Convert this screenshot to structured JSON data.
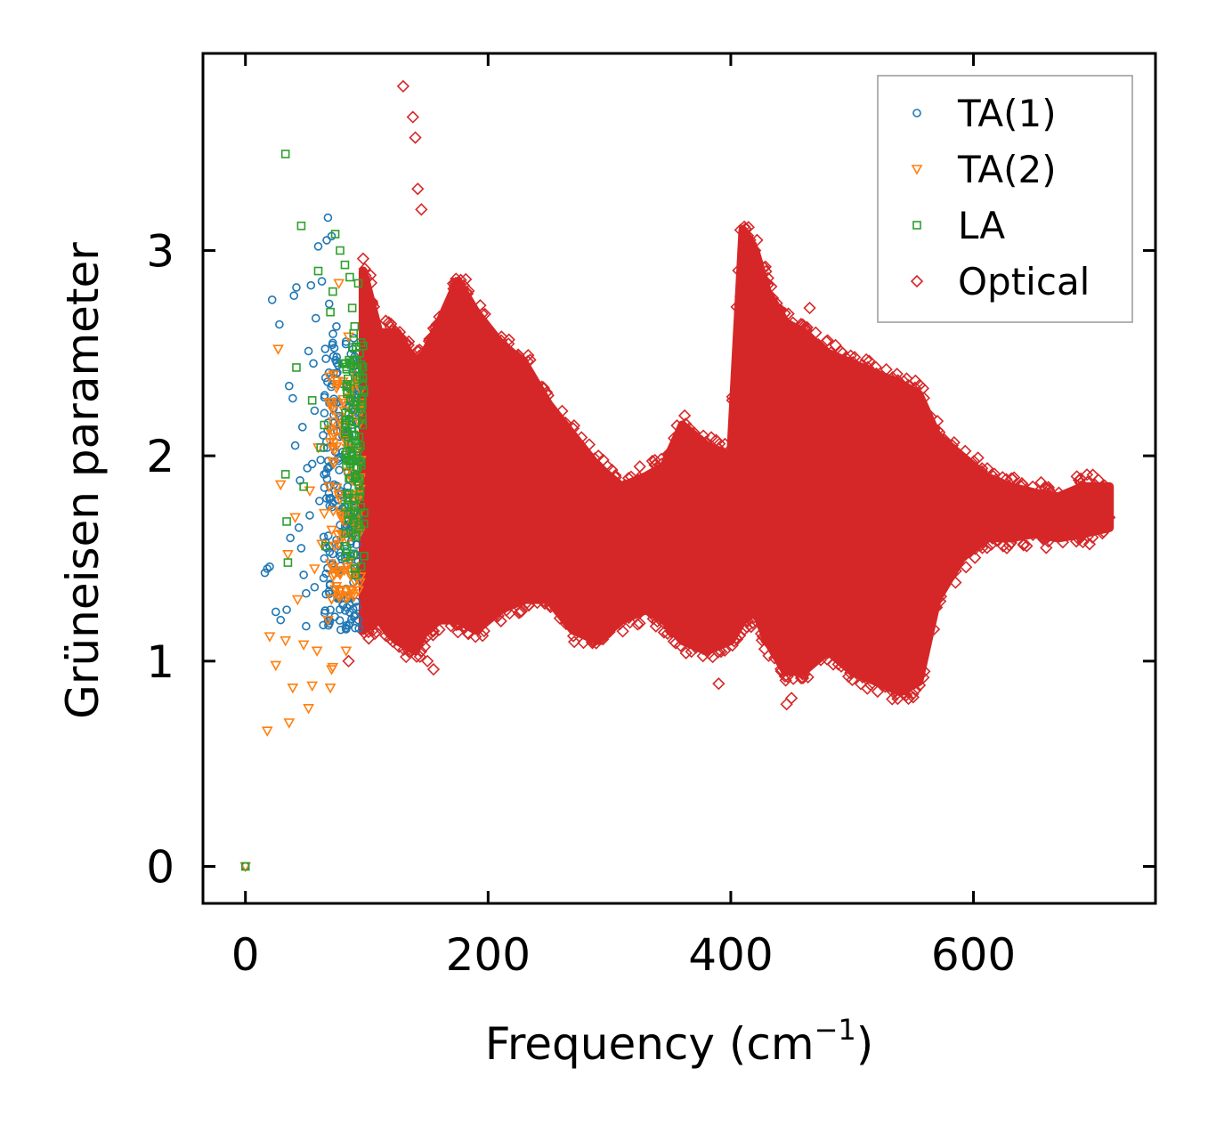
{
  "chart_data": {
    "type": "scatter",
    "title": "",
    "xlabel": "Frequency (cm",
    "xlabel_superscript": "−1",
    "xlabel_suffix": ")",
    "ylabel": "Grüneisen parameter",
    "xlim": [
      -35,
      750
    ],
    "ylim": [
      -0.18,
      3.96
    ],
    "xticks": [
      0,
      200,
      400,
      600
    ],
    "xtick_labels": [
      "0",
      "200",
      "400",
      "600"
    ],
    "yticks": [
      0,
      1,
      2,
      3
    ],
    "ytick_labels": [
      "0",
      "1",
      "2",
      "3"
    ],
    "grid": false,
    "legend_position": "top-right",
    "series": [
      {
        "name": "TA(1)",
        "marker": "circle",
        "color": "#1f77b4",
        "points": [
          [
            0,
            0
          ],
          [
            16,
            1.43
          ],
          [
            18,
            1.45
          ],
          [
            20,
            1.46
          ],
          [
            22,
            2.76
          ],
          [
            25,
            1.24
          ],
          [
            28,
            2.64
          ],
          [
            29,
            1.2
          ],
          [
            34,
            1.25
          ],
          [
            36,
            2.34
          ],
          [
            37,
            1.6
          ],
          [
            39,
            2.28
          ],
          [
            40,
            2.78
          ],
          [
            41,
            2.05
          ],
          [
            42,
            2.82
          ],
          [
            44,
            1.65
          ],
          [
            45,
            1.88
          ],
          [
            46,
            1.55
          ],
          [
            47,
            2.14
          ],
          [
            48,
            1.42
          ],
          [
            50,
            1.33
          ],
          [
            50,
            1.17
          ],
          [
            51,
            1.94
          ],
          [
            52,
            2.51
          ],
          [
            53,
            1.71
          ],
          [
            54,
            2.83
          ],
          [
            55,
            1.96
          ],
          [
            56,
            2.45
          ],
          [
            57,
            2.22
          ],
          [
            57,
            1.36
          ],
          [
            58,
            2.67
          ],
          [
            60,
            3.02
          ],
          [
            61,
            1.78
          ],
          [
            62,
            1.98
          ],
          [
            63,
            2.85
          ],
          [
            64,
            2.1
          ],
          [
            65,
            1.5
          ],
          [
            66,
            2.38
          ],
          [
            67,
            3.05
          ],
          [
            68,
            3.16
          ],
          [
            69,
            2.74
          ],
          [
            70,
            1.25
          ],
          [
            71,
            3.07
          ],
          [
            72,
            2.55
          ],
          [
            73,
            1.86
          ],
          [
            74,
            2.02
          ],
          [
            75,
            2.63
          ],
          [
            76,
            1.31
          ],
          [
            78,
            2.16
          ],
          [
            80,
            2.35
          ],
          [
            82,
            1.62
          ],
          [
            84,
            1.82
          ],
          [
            85,
            2.24
          ],
          [
            87,
            1.45
          ],
          [
            88,
            1.9
          ],
          [
            90,
            1.52
          ],
          [
            91,
            1.29
          ],
          [
            92,
            1.72
          ],
          [
            93,
            1.2
          ]
        ],
        "dense_band": {
          "x": [
            64,
            94
          ],
          "y": [
            1.15,
            2.6
          ],
          "density": 220
        }
      },
      {
        "name": "TA(2)",
        "marker": "triangle-down",
        "color": "#ff7f0e",
        "points": [
          [
            0,
            0
          ],
          [
            18,
            0.66
          ],
          [
            20,
            1.12
          ],
          [
            25,
            0.98
          ],
          [
            27,
            2.52
          ],
          [
            29,
            1.86
          ],
          [
            33,
            1.1
          ],
          [
            35,
            1.52
          ],
          [
            36,
            0.7
          ],
          [
            39,
            0.87
          ],
          [
            41,
            1.7
          ],
          [
            43,
            1.3
          ],
          [
            48,
            1.08
          ],
          [
            52,
            0.77
          ],
          [
            53,
            1.83
          ],
          [
            55,
            0.88
          ],
          [
            57,
            1.45
          ],
          [
            59,
            1.05
          ],
          [
            60,
            2.04
          ],
          [
            63,
            1.57
          ],
          [
            65,
            1.72
          ],
          [
            68,
            1.2
          ],
          [
            70,
            0.87
          ],
          [
            71,
            0.96
          ],
          [
            72,
            0.97
          ],
          [
            74,
            1.35
          ],
          [
            75,
            2.33
          ],
          [
            77,
            2.84
          ],
          [
            79,
            1.62
          ],
          [
            81,
            2.15
          ],
          [
            83,
            1.05
          ],
          [
            85,
            2.58
          ],
          [
            88,
            1.88
          ],
          [
            90,
            1.39
          ],
          [
            92,
            2.42
          ]
        ],
        "dense_band": {
          "x": [
            68,
            96
          ],
          "y": [
            1.3,
            2.4
          ],
          "density": 120
        }
      },
      {
        "name": "LA",
        "marker": "square",
        "color": "#2ca02c",
        "points": [
          [
            0,
            0
          ],
          [
            33,
            3.47
          ],
          [
            34,
            1.68
          ],
          [
            35,
            1.48
          ],
          [
            33,
            1.91
          ],
          [
            42,
            2.43
          ],
          [
            46,
            3.12
          ],
          [
            48,
            1.85
          ],
          [
            55,
            2.27
          ],
          [
            60,
            2.9
          ],
          [
            62,
            2.04
          ],
          [
            65,
            2.15
          ],
          [
            66,
            1.56
          ],
          [
            70,
            2.7
          ],
          [
            72,
            2.8
          ],
          [
            74,
            3.08
          ],
          [
            78,
            3.0
          ],
          [
            80,
            2.45
          ],
          [
            82,
            2.93
          ],
          [
            84,
            2.12
          ],
          [
            86,
            2.87
          ],
          [
            88,
            2.72
          ],
          [
            90,
            2.63
          ],
          [
            92,
            2.0
          ],
          [
            93,
            2.84
          ],
          [
            94,
            2.5
          ],
          [
            95,
            1.75
          ],
          [
            96,
            2.28
          ]
        ],
        "dense_band": {
          "x": [
            82,
            98
          ],
          "y": [
            1.4,
            2.6
          ],
          "density": 120
        }
      },
      {
        "name": "Optical",
        "marker": "diamond",
        "color": "#d62728",
        "points": [
          [
            85,
            1.0
          ],
          [
            97,
            2.96
          ],
          [
            103,
            2.88
          ],
          [
            130,
            3.8
          ],
          [
            138,
            3.65
          ],
          [
            140,
            3.55
          ],
          [
            142,
            3.3
          ],
          [
            145,
            3.2
          ],
          [
            150,
            1.0
          ],
          [
            155,
            0.96
          ],
          [
            390,
            0.89
          ],
          [
            408,
            3.1
          ],
          [
            420,
            3.0
          ],
          [
            446,
            0.79
          ],
          [
            450,
            0.82
          ],
          [
            465,
            2.72
          ],
          [
            470,
            2.6
          ],
          [
            490,
            2.45
          ],
          [
            520,
            2.4
          ],
          [
            532,
            0.86
          ],
          [
            550,
            0.84
          ],
          [
            555,
            1.05
          ],
          [
            590,
            1.62
          ],
          [
            600,
            1.58
          ],
          [
            640,
            1.64
          ],
          [
            660,
            1.82
          ],
          [
            700,
            1.86
          ],
          [
            712,
            1.7
          ]
        ],
        "envelope": {
          "freq": [
            97,
            110,
            125,
            140,
            148,
            160,
            175,
            190,
            210,
            230,
            250,
            270,
            290,
            310,
            330,
            345,
            360,
            380,
            400,
            410,
            420,
            430,
            445,
            460,
            480,
            500,
            520,
            540,
            555,
            570,
            590,
            610,
            630,
            650,
            670,
            690,
            712
          ],
          "upper": [
            2.9,
            2.6,
            2.6,
            2.45,
            2.5,
            2.65,
            2.85,
            2.7,
            2.55,
            2.45,
            2.25,
            2.1,
            1.95,
            1.85,
            1.9,
            1.95,
            2.15,
            2.05,
            2.0,
            3.1,
            3.0,
            2.8,
            2.65,
            2.6,
            2.5,
            2.45,
            2.4,
            2.35,
            2.3,
            2.1,
            2.0,
            1.9,
            1.85,
            1.82,
            1.8,
            1.85,
            1.85
          ],
          "lower": [
            1.15,
            1.2,
            1.1,
            1.05,
            1.15,
            1.2,
            1.2,
            1.15,
            1.25,
            1.3,
            1.3,
            1.15,
            1.1,
            1.2,
            1.25,
            1.2,
            1.1,
            1.05,
            1.1,
            1.2,
            1.25,
            1.1,
            0.95,
            0.95,
            1.05,
            0.95,
            0.9,
            0.85,
            0.9,
            1.3,
            1.5,
            1.6,
            1.6,
            1.62,
            1.6,
            1.62,
            1.65
          ]
        }
      }
    ]
  }
}
